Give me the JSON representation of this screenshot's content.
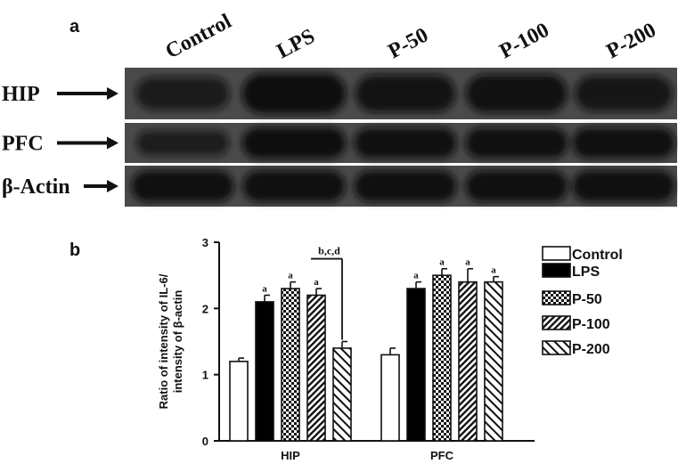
{
  "panel_a": {
    "letter": "a",
    "lanes": [
      "Control",
      "LPS",
      "P-50",
      "P-100",
      "P-200"
    ],
    "rows": [
      {
        "label": "HIP",
        "band_intensity": [
          0.55,
          0.95,
          0.8,
          0.85,
          0.7
        ]
      },
      {
        "label": "PFC",
        "band_intensity": [
          0.5,
          0.95,
          0.9,
          0.9,
          0.9
        ]
      },
      {
        "label": "β-Actin",
        "band_intensity": [
          0.9,
          0.9,
          0.9,
          0.9,
          0.9
        ]
      }
    ],
    "colors": {
      "membrane": "#4a4a4a",
      "band": "#101010",
      "separator": "#ffffff"
    }
  },
  "panel_b": {
    "letter": "b"
  },
  "chart_data": {
    "type": "bar",
    "categories": [
      "HIP",
      "PFC"
    ],
    "ylabel": "Ratio of intensity of IL-6/ intensity of β-actin",
    "ylabel_lines": [
      "Ratio of intensity of IL-6/",
      "intensity of β-actin"
    ],
    "ylim": [
      0,
      3
    ],
    "yticks": [
      "0",
      "1",
      "2",
      "3"
    ],
    "grid": false,
    "legend_position": "right",
    "series": [
      {
        "name": "Control",
        "pattern": "white",
        "values": [
          1.2,
          1.3
        ],
        "errors": [
          0.05,
          0.1
        ],
        "sig": [
          "",
          ""
        ]
      },
      {
        "name": "LPS",
        "pattern": "black",
        "values": [
          2.1,
          2.3
        ],
        "errors": [
          0.1,
          0.1
        ],
        "sig": [
          "a",
          "a"
        ]
      },
      {
        "name": "P-50",
        "pattern": "checker",
        "values": [
          2.3,
          2.5
        ],
        "errors": [
          0.1,
          0.1
        ],
        "sig": [
          "a",
          "a"
        ]
      },
      {
        "name": "P-100",
        "pattern": "diag-dense",
        "values": [
          2.2,
          2.4
        ],
        "errors": [
          0.1,
          0.2
        ],
        "sig": [
          "a",
          "a"
        ]
      },
      {
        "name": "P-200",
        "pattern": "diag-wide",
        "values": [
          1.4,
          2.4
        ],
        "errors": [
          0.1,
          0.08
        ],
        "sig": [
          "",
          "a"
        ]
      }
    ],
    "annotation": {
      "text": "b,c,d",
      "category": "HIP",
      "from_series": 3,
      "to_series": 4
    }
  }
}
